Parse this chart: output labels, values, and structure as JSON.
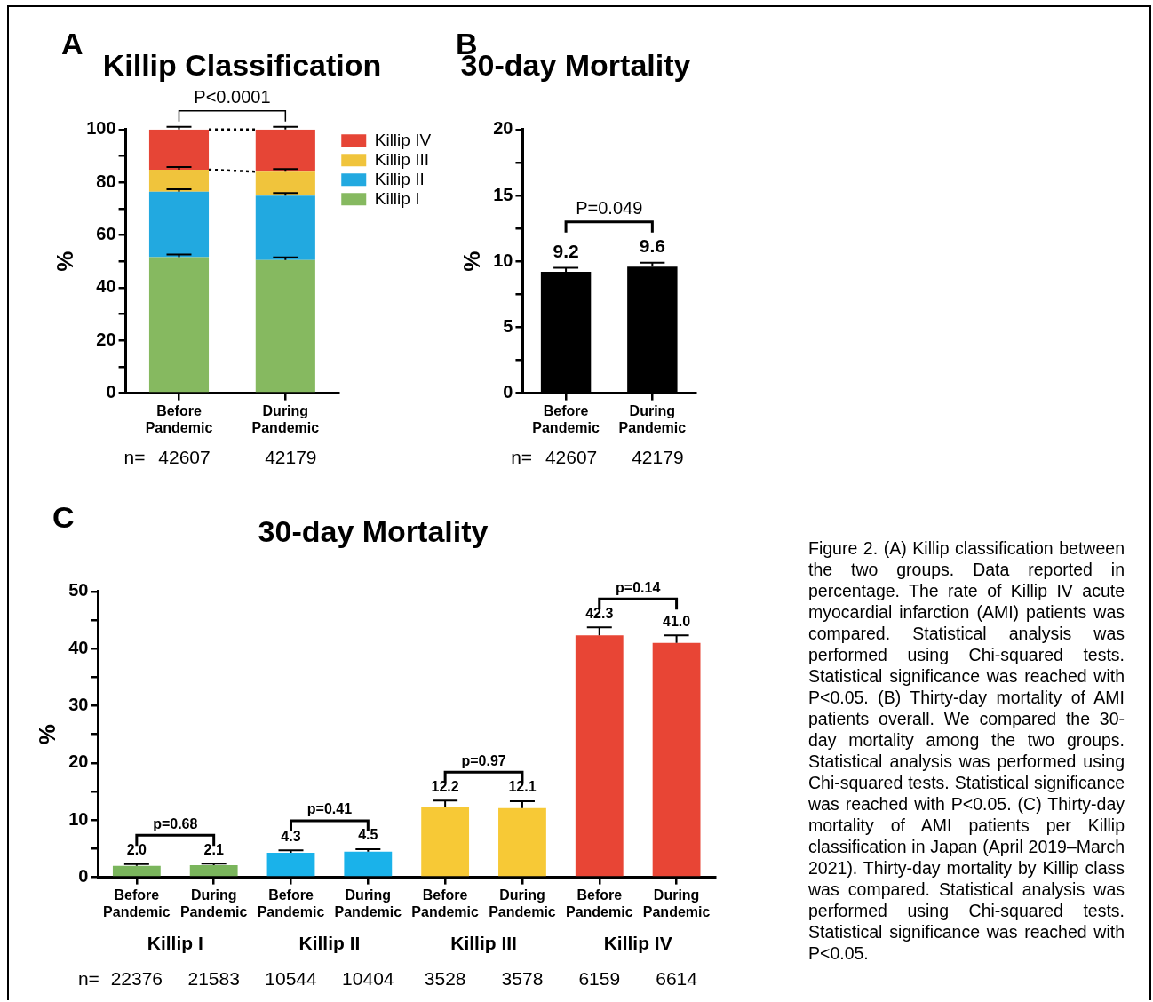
{
  "chart_data": [
    {
      "type": "bar",
      "title": "Killip Classification",
      "ylabel": "%",
      "categories": [
        "Before Pandemic",
        "During Pandemic"
      ],
      "stacked": true,
      "legend": "right",
      "ylim": [
        0,
        100
      ],
      "yticks": [
        0,
        {
          "value": 10,
          "label": null
        },
        20,
        {
          "value": 30,
          "label": null
        },
        40,
        {
          "value": 50,
          "label": null
        },
        60,
        {
          "value": 70,
          "label": null
        },
        80,
        {
          "value": 90,
          "label": null
        },
        100
      ],
      "series": [
        {
          "name": "Killip I",
          "color": "#86b960",
          "values": [
            51.6,
            50.5
          ],
          "errors": [
            1.0,
            1.0
          ]
        },
        {
          "name": "Killip II",
          "color": "#22a9e0",
          "values": [
            24.8,
            24.4
          ],
          "errors": [
            1.0,
            1.0
          ]
        },
        {
          "name": "Killip III",
          "color": "#f0c43c",
          "values": [
            8.4,
            9.1
          ],
          "errors": [
            1.0,
            1.0
          ]
        },
        {
          "name": "Killip IV",
          "color": "#e64536",
          "values": [
            15.2,
            16.0
          ],
          "errors": [
            1.0,
            1.0
          ]
        }
      ],
      "annotations": [
        "A",
        "P<0.0001",
        "n=",
        "42607",
        "42179"
      ]
    },
    {
      "type": "bar",
      "title": "30-day Mortality",
      "ylabel": "%",
      "categories": [
        "Before Pandemic",
        "During Pandemic"
      ],
      "values": [
        9.2,
        9.6
      ],
      "errors": [
        0.3,
        0.3
      ],
      "color": "#000000",
      "data_labels": true,
      "ylim": [
        0,
        20
      ],
      "yticks": [
        0,
        {
          "value": 2.5,
          "label": null
        },
        5,
        {
          "value": 7.5,
          "label": null
        },
        10,
        {
          "value": 12.5,
          "label": null
        },
        15,
        {
          "value": 17.5,
          "label": null
        },
        20
      ],
      "annotations": [
        "B",
        "P=0.049",
        "n=",
        "42607",
        "42179"
      ]
    },
    {
      "type": "bar",
      "title": "30-day Mortality",
      "ylabel": "%",
      "categories": [
        "Before Pandemic",
        "During Pandemic",
        "Before Pandemic",
        "During Pandemic",
        "Before Pandemic",
        "During Pandemic",
        "Before Pandemic",
        "During Pandemic"
      ],
      "values": [
        2.0,
        2.1,
        4.3,
        4.5,
        12.2,
        12.1,
        42.3,
        41.0
      ],
      "errors": [
        0.3,
        0.3,
        0.4,
        0.4,
        1.2,
        1.2,
        1.4,
        1.3
      ],
      "colors": [
        "#7ab55c",
        "#7ab55c",
        "#1ab2ea",
        "#1ab2ea",
        "#f7c936",
        "#f7c936",
        "#e84535",
        "#e84535"
      ],
      "value_labels": [
        "2.0",
        "2.1",
        "4.3",
        "4.5",
        "12.2",
        "12.1",
        "42.3",
        "41.0"
      ],
      "ylim": [
        0,
        50
      ],
      "yticks": [
        0,
        {
          "value": 5,
          "label": null
        },
        10,
        {
          "value": 15,
          "label": null
        },
        20,
        {
          "value": 25,
          "label": null
        },
        30,
        {
          "value": 35,
          "label": null
        },
        40,
        {
          "value": 45,
          "label": null
        },
        50
      ],
      "annotations": [
        "C",
        "p=0.68",
        "p=0.41",
        "p=0.97",
        "p=0.14",
        "Killip I",
        "Killip II",
        "Killip III",
        "Killip IV",
        "n=",
        "22376",
        "21583",
        "10544",
        "10404",
        "3528",
        "3578",
        "6159",
        "6614"
      ]
    },
    {
      "type": "other",
      "annotations": [
        "Figure 2. (A) Killip classification between the two groups. Data reported in percentage. The rate of Killip IV acute myocardial infarction (AMI) patients was compared. Statistical analysis was performed using Chi-squared tests. Statistical significance was reached with P<0.05. (B) Thirty-day mortality of AMI patients overall. We compared the 30-day mortality among the two groups. Statistical analysis was performed using Chi-squared tests. Statistical significance was reached with P<0.05. (C) Thirty-day mortality of AMI patients per Killip classification in Japan (April 2019–March 2021). Thirty-day mortality by Killip class was compared. Statistical analysis was performed using Chi-squared tests. Statistical significance was reached with P<0.05."
      ]
    }
  ]
}
